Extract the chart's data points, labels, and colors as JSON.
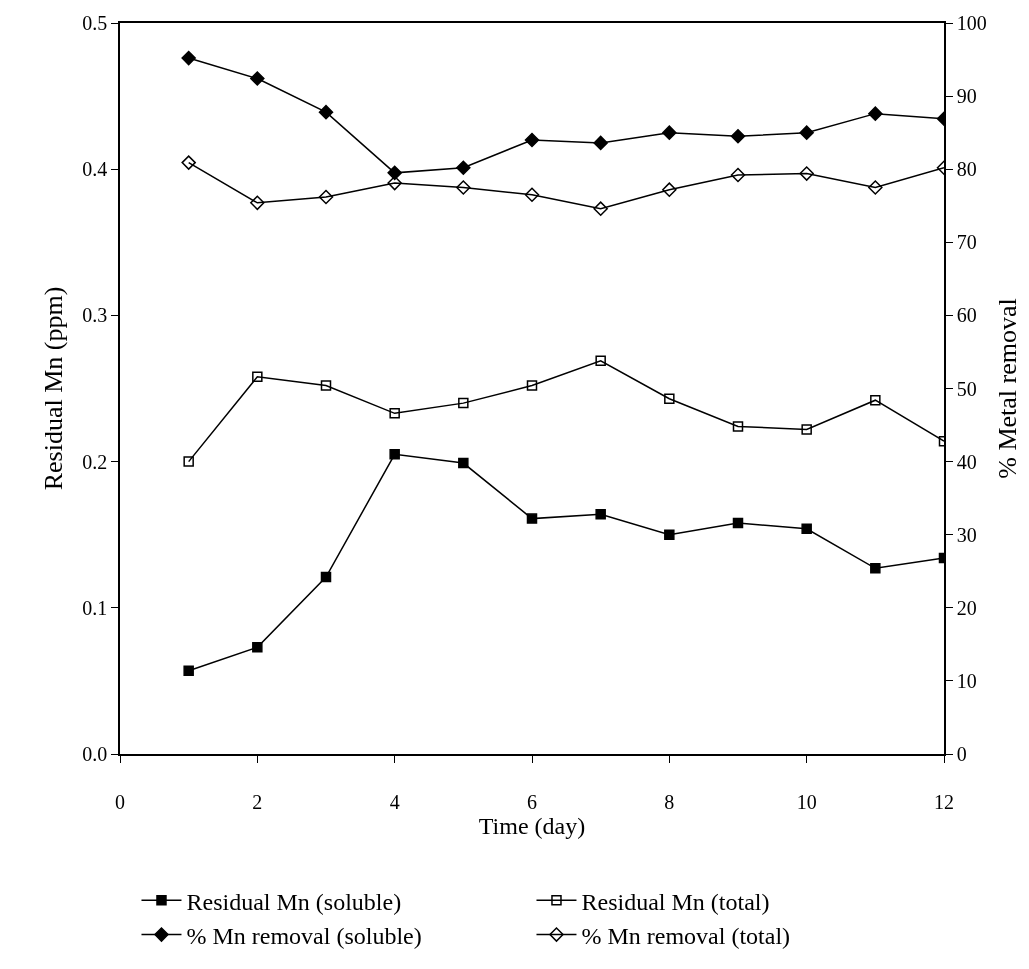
{
  "chart_data": {
    "type": "line",
    "xlabel": "Time (day)",
    "ylabel": "Residual Mn (ppm)",
    "y2label": "% Metal removal",
    "x": [
      1,
      2,
      3,
      4,
      5,
      6,
      7,
      8,
      9,
      10,
      11,
      12
    ],
    "xlim": [
      0,
      12
    ],
    "xticks": [
      0,
      2,
      4,
      6,
      8,
      10,
      12
    ],
    "ylim": [
      0,
      0.5
    ],
    "yticks": [
      {
        "value": 0,
        "label": "0.0"
      },
      0.1,
      0.2,
      0.3,
      0.4,
      0.5
    ],
    "y2lim": [
      0,
      100
    ],
    "y2ticks": [
      0,
      10,
      20,
      30,
      40,
      50,
      60,
      70,
      80,
      90,
      100
    ],
    "legend": "bottom",
    "series": [
      {
        "name": "Residual Mn (soluble)",
        "color": "#000000",
        "marker": "square",
        "values": [
          0.057,
          0.073,
          0.121,
          0.205,
          0.199,
          0.161,
          0.164,
          0.15,
          0.158,
          0.154,
          0.127,
          0.134
        ]
      },
      {
        "name": "Residual Mn (total)",
        "color": "#000000",
        "marker": "square",
        "values": [
          0.2,
          0.258,
          0.252,
          0.233,
          0.24,
          0.252,
          0.269,
          0.243,
          0.224,
          0.222,
          0.242,
          0.214
        ]
      },
      {
        "name": "% Mn removal (soluble)",
        "color": "#000000",
        "marker": "diamond",
        "axis": "y2",
        "values": [
          95.2,
          92.4,
          87.8,
          79.5,
          80.2,
          84.0,
          83.6,
          85.0,
          84.5,
          85.0,
          87.6,
          86.9
        ]
      },
      {
        "name": "% Mn removal (total)",
        "color": "#000000",
        "marker": "diamond",
        "axis": "y2",
        "values": [
          80.9,
          75.4,
          76.2,
          78.1,
          77.5,
          76.5,
          74.6,
          77.2,
          79.2,
          79.4,
          77.5,
          80.2
        ]
      }
    ]
  }
}
